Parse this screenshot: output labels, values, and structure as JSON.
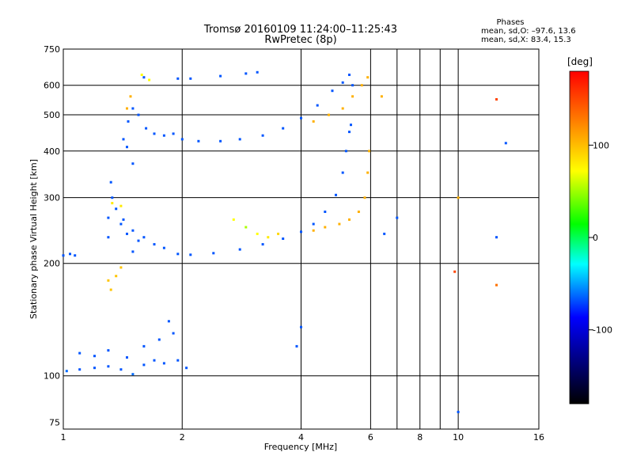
{
  "chart_data": {
    "type": "scatter",
    "title": "Tromsø 20160109 11:24:00–11:25:43",
    "subtitle": "RwPretec (8p)",
    "xlabel": "Frequency [MHz]",
    "ylabel": "Stationary phase Virtual Height [km]",
    "x_scale": "log",
    "y_scale": "log",
    "xlim": [
      1,
      16
    ],
    "ylim": [
      72,
      750
    ],
    "xticks": [
      1,
      2,
      4,
      6,
      8,
      10,
      16
    ],
    "yticks": [
      75,
      100,
      200,
      300,
      400,
      500,
      600,
      750
    ],
    "x_gridlines": [
      1,
      2,
      4,
      6,
      7,
      8,
      9,
      10,
      16
    ],
    "y_gridlines": [
      100,
      200,
      300,
      400,
      500,
      600,
      750
    ],
    "grid": true,
    "phases_box": {
      "heading": "Phases",
      "line_o": "mean, sd,O: –97.6, 13.6",
      "line_x": "mean, sd,X: 83.4, 15.3"
    },
    "colorbar": {
      "label": "[deg]",
      "range": [
        -180,
        180
      ],
      "ticks": [
        100,
        0,
        -100
      ],
      "colors": [
        "#ff0000",
        "#ff8800",
        "#ffff00",
        "#00ff00",
        "#00ffff",
        "#0000ff",
        "#000000"
      ]
    },
    "series": [
      {
        "trace": [
          [
            1.0,
            210,
            -100
          ],
          [
            1.04,
            212,
            -100
          ],
          [
            1.07,
            210,
            -100
          ],
          [
            1.02,
            103,
            -95
          ],
          [
            1.1,
            104,
            -100
          ],
          [
            1.2,
            105,
            -100
          ],
          [
            1.3,
            106,
            -100
          ],
          [
            1.4,
            104,
            -100
          ],
          [
            1.5,
            101,
            -95
          ],
          [
            1.6,
            107,
            -100
          ],
          [
            1.7,
            110,
            -100
          ],
          [
            1.8,
            108,
            -100
          ],
          [
            1.1,
            115,
            -100
          ],
          [
            1.2,
            113,
            -100
          ],
          [
            1.3,
            117,
            -100
          ],
          [
            1.45,
            112,
            -100
          ],
          [
            1.6,
            120,
            -100
          ],
          [
            1.75,
            125,
            -100
          ],
          [
            1.85,
            140,
            -100
          ],
          [
            1.9,
            130,
            -100
          ],
          [
            1.95,
            110,
            -100
          ],
          [
            2.05,
            105,
            -100
          ],
          [
            1.3,
            265,
            -100
          ],
          [
            1.33,
            300,
            -100
          ],
          [
            1.36,
            280,
            -100
          ],
          [
            1.4,
            255,
            -100
          ],
          [
            1.45,
            240,
            -100
          ],
          [
            1.5,
            245,
            -100
          ],
          [
            1.55,
            230,
            -100
          ],
          [
            1.6,
            235,
            -100
          ],
          [
            1.7,
            225,
            -100
          ],
          [
            1.8,
            220,
            -100
          ],
          [
            1.95,
            212,
            -100
          ],
          [
            2.1,
            211,
            -100
          ],
          [
            2.4,
            213,
            -100
          ],
          [
            2.8,
            218,
            -100
          ],
          [
            3.2,
            225,
            -100
          ],
          [
            3.6,
            233,
            -100
          ],
          [
            4.0,
            243,
            -100
          ],
          [
            4.3,
            255,
            -100
          ],
          [
            4.6,
            275,
            -100
          ],
          [
            4.9,
            305,
            -100
          ],
          [
            5.1,
            350,
            -100
          ],
          [
            5.2,
            400,
            -100
          ],
          [
            5.3,
            450,
            -100
          ],
          [
            5.35,
            470,
            -100
          ],
          [
            1.3,
            235,
            -100
          ],
          [
            1.42,
            262,
            -100
          ],
          [
            1.5,
            215,
            -100
          ],
          [
            1.32,
            330,
            -100
          ],
          [
            1.42,
            430,
            -100
          ],
          [
            1.46,
            480,
            -100
          ],
          [
            1.5,
            520,
            -100
          ],
          [
            1.55,
            500,
            -100
          ],
          [
            1.62,
            460,
            -100
          ],
          [
            1.7,
            445,
            -100
          ],
          [
            1.8,
            440,
            -100
          ],
          [
            1.9,
            445,
            -100
          ],
          [
            2.0,
            430,
            -100
          ],
          [
            2.2,
            425,
            -100
          ],
          [
            2.5,
            425,
            -100
          ],
          [
            2.8,
            430,
            -100
          ],
          [
            3.2,
            440,
            -100
          ],
          [
            3.6,
            460,
            -100
          ],
          [
            4.0,
            490,
            -100
          ],
          [
            4.4,
            530,
            -100
          ],
          [
            4.8,
            580,
            -100
          ],
          [
            5.1,
            610,
            -100
          ],
          [
            5.3,
            640,
            -100
          ],
          [
            5.4,
            600,
            -100
          ],
          [
            1.45,
            410,
            -100
          ],
          [
            1.5,
            370,
            -100
          ],
          [
            1.6,
            630,
            -100
          ],
          [
            1.95,
            625,
            -100
          ],
          [
            2.1,
            625,
            -100
          ],
          [
            2.5,
            635,
            -100
          ],
          [
            2.9,
            645,
            -100
          ],
          [
            3.1,
            650,
            -100
          ],
          [
            4.0,
            135,
            -100
          ],
          [
            3.9,
            120,
            -100
          ],
          [
            10.0,
            80,
            -100
          ],
          [
            12.5,
            235,
            -100
          ],
          [
            6.5,
            240,
            -100
          ],
          [
            7.0,
            265,
            -100
          ],
          [
            13.2,
            420,
            -100
          ]
        ]
      },
      {
        "trace": [
          [
            1.3,
            180,
            90
          ],
          [
            1.32,
            170,
            90
          ],
          [
            1.36,
            185,
            90
          ],
          [
            1.4,
            195,
            90
          ],
          [
            1.33,
            290,
            70
          ],
          [
            1.4,
            285,
            70
          ],
          [
            1.45,
            520,
            100
          ],
          [
            1.48,
            560,
            100
          ],
          [
            1.58,
            640,
            60
          ],
          [
            4.3,
            245,
            100
          ],
          [
            4.6,
            250,
            100
          ],
          [
            5.0,
            255,
            100
          ],
          [
            5.3,
            262,
            100
          ],
          [
            5.6,
            275,
            100
          ],
          [
            5.8,
            300,
            100
          ],
          [
            5.9,
            350,
            100
          ],
          [
            5.95,
            400,
            100
          ],
          [
            4.3,
            480,
            100
          ],
          [
            4.7,
            500,
            100
          ],
          [
            5.1,
            520,
            100
          ],
          [
            5.4,
            560,
            100
          ],
          [
            5.7,
            600,
            100
          ],
          [
            5.9,
            630,
            100
          ],
          [
            2.7,
            262,
            60
          ],
          [
            2.9,
            250,
            40
          ],
          [
            3.1,
            240,
            60
          ],
          [
            3.3,
            235,
            70
          ],
          [
            3.5,
            240,
            80
          ],
          [
            1.65,
            620,
            60
          ],
          [
            6.4,
            560,
            100
          ],
          [
            10.0,
            300,
            100
          ],
          [
            12.5,
            550,
            150
          ],
          [
            9.8,
            190,
            150
          ],
          [
            12.5,
            175,
            130
          ]
        ]
      }
    ]
  }
}
